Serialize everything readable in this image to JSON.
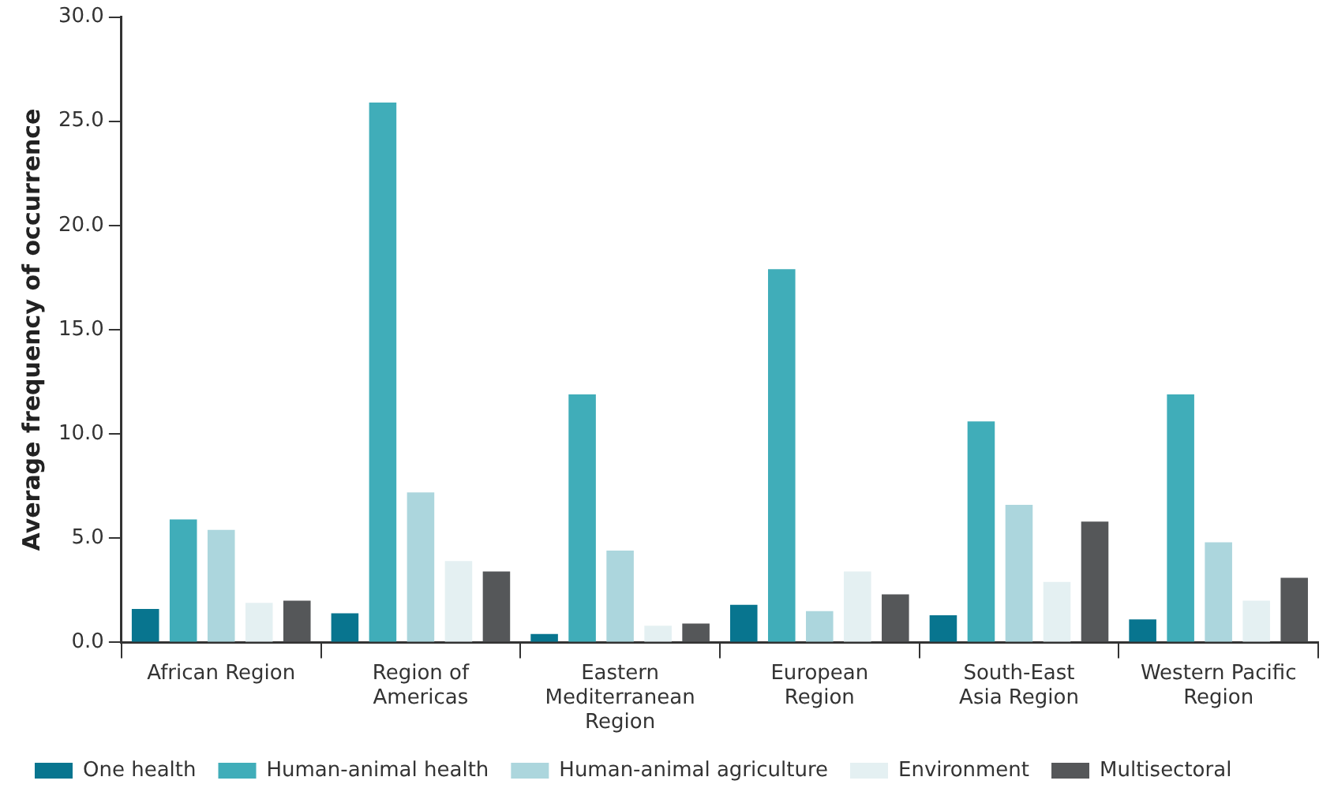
{
  "chart_data": {
    "type": "bar",
    "ylabel": "Average frequency of occurrence",
    "categories": [
      "African Region",
      "Region of\nAmericas",
      "Eastern\nMediterranean\nRegion",
      "European\nRegion",
      "South-East\nAsia Region",
      "Western Pacific\nRegion"
    ],
    "series": [
      {
        "name": "One health",
        "color": "#08758f",
        "values": [
          1.6,
          1.4,
          0.4,
          1.8,
          1.3,
          1.1
        ]
      },
      {
        "name": "Human-animal health",
        "color": "#40adb9",
        "values": [
          5.9,
          25.9,
          11.9,
          17.9,
          10.6,
          11.9
        ]
      },
      {
        "name": "Human-animal agriculture",
        "color": "#acd6dd",
        "values": [
          5.4,
          7.2,
          4.4,
          1.5,
          6.6,
          4.8
        ]
      },
      {
        "name": "Environment",
        "color": "#e4f0f2",
        "values": [
          1.9,
          3.9,
          0.8,
          3.4,
          2.9,
          2.0
        ]
      },
      {
        "name": "Multisectoral",
        "color": "#555759",
        "values": [
          2.0,
          3.4,
          0.9,
          2.3,
          5.8,
          3.1
        ]
      }
    ],
    "ylim": [
      0,
      30
    ],
    "yticks": [
      {
        "value": 0,
        "label": "0.0"
      },
      {
        "value": 5,
        "label": "5.0"
      },
      {
        "value": 10,
        "label": "10.0"
      },
      {
        "value": 15,
        "label": "15.0"
      },
      {
        "value": 20,
        "label": "20.0"
      },
      {
        "value": 25,
        "label": "25.0"
      },
      {
        "value": 30,
        "label": "30.0"
      }
    ],
    "grid": false,
    "legend": "bottom"
  }
}
